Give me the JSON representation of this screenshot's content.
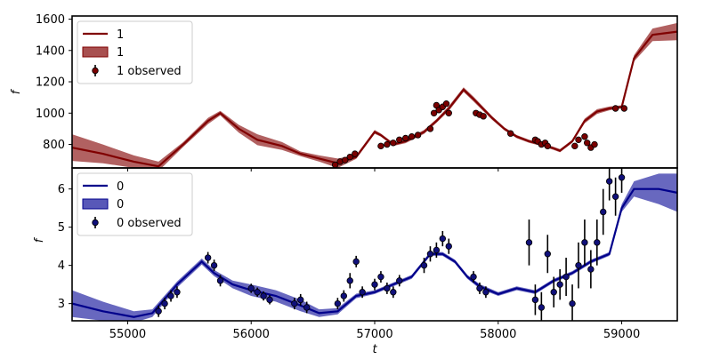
{
  "chart_data": [
    {
      "type": "line",
      "panel": "top",
      "xlabel": "t",
      "ylabel": "f",
      "xlim": [
        54550,
        59450
      ],
      "ylim": [
        650,
        1620
      ],
      "xticks": [
        55000,
        56000,
        57000,
        58000,
        59000
      ],
      "yticks": [
        800,
        1000,
        1200,
        1400,
        1600
      ],
      "legend": [
        "1",
        "1",
        "1 observed"
      ],
      "legend_position": "top-left",
      "colors": {
        "line": "#800000",
        "band": "#a85050",
        "point": "#7a0000"
      },
      "series": [
        {
          "name": "1",
          "x": [
            54550,
            54800,
            55050,
            55250,
            55450,
            55650,
            55750,
            55900,
            56050,
            56250,
            56400,
            56550,
            56700,
            56850,
            57000,
            57050,
            57150,
            57250,
            57400,
            57500,
            57600,
            57720,
            57800,
            57950,
            58050,
            58150,
            58250,
            58350,
            58450,
            58500,
            58600,
            58700,
            58800,
            58900,
            59000,
            59100,
            59250,
            59450
          ],
          "y": [
            780,
            740,
            690,
            660,
            800,
            950,
            1000,
            900,
            830,
            790,
            740,
            710,
            680,
            720,
            880,
            860,
            800,
            820,
            880,
            950,
            1030,
            1150,
            1090,
            970,
            900,
            850,
            820,
            800,
            775,
            760,
            820,
            950,
            1010,
            1030,
            1040,
            1350,
            1500,
            1520
          ],
          "band_halfwidth": [
            85,
            60,
            40,
            30,
            15,
            20,
            15,
            25,
            35,
            25,
            15,
            20,
            30,
            12,
            12,
            10,
            10,
            12,
            12,
            12,
            15,
            15,
            15,
            12,
            10,
            10,
            10,
            10,
            10,
            10,
            10,
            15,
            15,
            12,
            10,
            20,
            40,
            55
          ]
        }
      ],
      "observed": {
        "name": "1 observed",
        "x": [
          56680,
          56720,
          56760,
          56800,
          56840,
          57050,
          57100,
          57150,
          57200,
          57250,
          57300,
          57350,
          57450,
          57480,
          57500,
          57520,
          57550,
          57580,
          57600,
          57820,
          57850,
          57880,
          58100,
          58300,
          58320,
          58350,
          58380,
          58400,
          58620,
          58650,
          58700,
          58720,
          58750,
          58780,
          58950,
          59020
        ],
        "y": [
          670,
          690,
          700,
          720,
          740,
          790,
          800,
          810,
          830,
          840,
          850,
          860,
          900,
          1000,
          1050,
          1020,
          1040,
          1060,
          1000,
          1000,
          990,
          980,
          870,
          830,
          820,
          800,
          810,
          790,
          790,
          830,
          850,
          810,
          780,
          800,
          1030,
          1030
        ],
        "err": [
          10,
          10,
          10,
          10,
          10,
          8,
          8,
          8,
          8,
          8,
          8,
          8,
          10,
          12,
          12,
          12,
          12,
          12,
          12,
          10,
          10,
          10,
          8,
          8,
          8,
          8,
          8,
          8,
          8,
          8,
          8,
          8,
          8,
          8,
          10,
          10
        ]
      }
    },
    {
      "type": "line",
      "panel": "bottom",
      "xlabel": "t",
      "ylabel": "f",
      "xlim": [
        54550,
        59450
      ],
      "ylim": [
        2.55,
        6.55
      ],
      "xticks": [
        55000,
        56000,
        57000,
        58000,
        59000
      ],
      "yticks": [
        3,
        4,
        5,
        6
      ],
      "legend": [
        "0",
        "0",
        "0 observed"
      ],
      "legend_position": "top-left",
      "colors": {
        "line": "#00008b",
        "band": "#5858b8",
        "point": "#10107a"
      },
      "series": [
        {
          "name": "0",
          "x": [
            54550,
            54800,
            55050,
            55200,
            55400,
            55600,
            55700,
            55850,
            56000,
            56200,
            56400,
            56550,
            56700,
            56850,
            57000,
            57150,
            57300,
            57450,
            57550,
            57650,
            57750,
            57850,
            58000,
            58150,
            58300,
            58450,
            58600,
            58750,
            58900,
            59000,
            59100,
            59300,
            59450
          ],
          "y": [
            3.0,
            2.8,
            2.65,
            2.75,
            3.5,
            4.1,
            3.8,
            3.5,
            3.35,
            3.2,
            2.95,
            2.75,
            2.8,
            3.2,
            3.3,
            3.5,
            3.7,
            4.3,
            4.3,
            4.1,
            3.7,
            3.45,
            3.25,
            3.4,
            3.3,
            3.6,
            3.8,
            4.1,
            4.3,
            5.5,
            6.0,
            6.0,
            5.9
          ],
          "band_halfwidth": [
            0.35,
            0.25,
            0.15,
            0.1,
            0.08,
            0.08,
            0.08,
            0.1,
            0.15,
            0.15,
            0.15,
            0.1,
            0.08,
            0.06,
            0.05,
            0.05,
            0.05,
            0.05,
            0.05,
            0.05,
            0.05,
            0.06,
            0.05,
            0.05,
            0.05,
            0.05,
            0.05,
            0.05,
            0.05,
            0.1,
            0.2,
            0.4,
            0.5
          ]
        }
      ],
      "observed": {
        "name": "0 observed",
        "x": [
          55250,
          55300,
          55350,
          55400,
          55650,
          55700,
          55750,
          56000,
          56050,
          56100,
          56150,
          56350,
          56400,
          56450,
          56700,
          56750,
          56800,
          56850,
          56900,
          57000,
          57050,
          57100,
          57150,
          57200,
          57400,
          57450,
          57500,
          57550,
          57600,
          57800,
          57850,
          57900,
          58250,
          58300,
          58350,
          58400,
          58450,
          58500,
          58550,
          58600,
          58650,
          58700,
          58750,
          58800,
          58850,
          58900,
          58950,
          59000
        ],
        "y": [
          2.8,
          3.0,
          3.2,
          3.3,
          4.2,
          4.0,
          3.6,
          3.4,
          3.3,
          3.2,
          3.1,
          3.0,
          3.1,
          2.9,
          3.0,
          3.2,
          3.6,
          4.1,
          3.3,
          3.5,
          3.7,
          3.4,
          3.3,
          3.6,
          4.0,
          4.3,
          4.4,
          4.7,
          4.5,
          3.7,
          3.4,
          3.3,
          4.6,
          3.1,
          2.9,
          4.3,
          3.3,
          3.5,
          3.7,
          3.0,
          4.0,
          4.6,
          3.9,
          4.6,
          5.4,
          6.2,
          5.8,
          6.3
        ],
        "err": [
          0.15,
          0.15,
          0.15,
          0.15,
          0.15,
          0.15,
          0.15,
          0.12,
          0.12,
          0.12,
          0.12,
          0.15,
          0.15,
          0.15,
          0.15,
          0.15,
          0.2,
          0.15,
          0.15,
          0.15,
          0.15,
          0.15,
          0.15,
          0.15,
          0.2,
          0.2,
          0.2,
          0.2,
          0.2,
          0.15,
          0.15,
          0.15,
          0.6,
          0.4,
          0.4,
          0.5,
          0.4,
          0.4,
          0.5,
          0.5,
          0.6,
          0.6,
          0.5,
          0.6,
          0.6,
          0.5,
          0.5,
          0.4
        ]
      }
    }
  ]
}
